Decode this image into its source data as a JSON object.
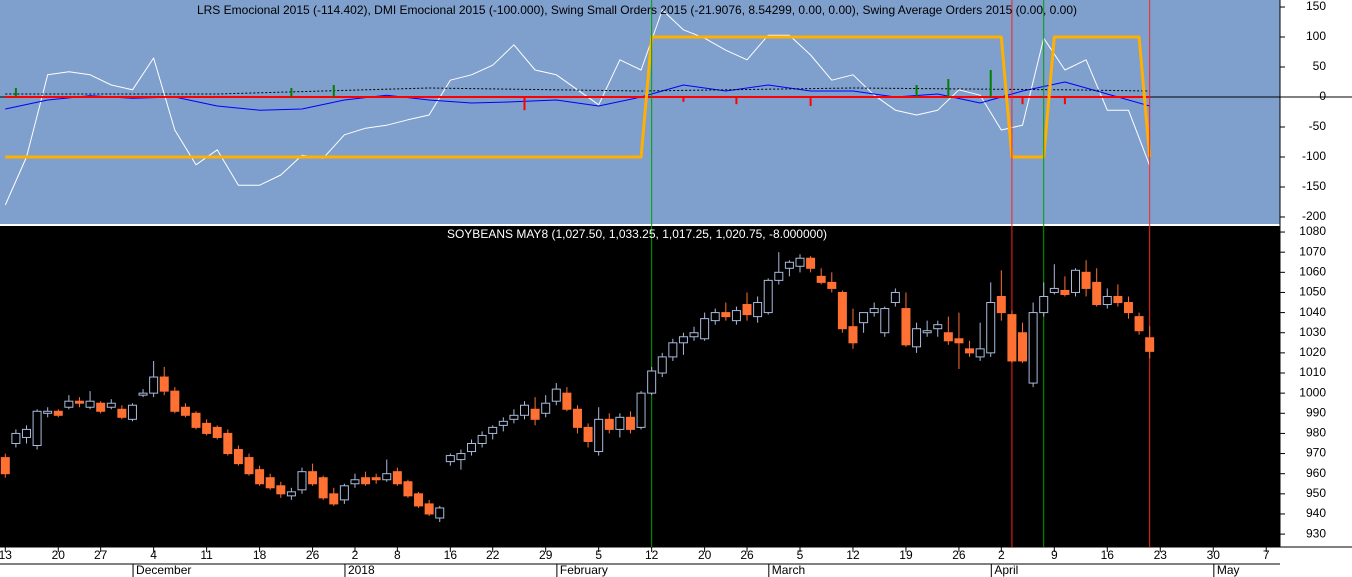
{
  "chart_data": [
    {
      "type": "line",
      "title": "LRS Emocional 2015 (-114.402), DMI Emocional 2015 (-100.000), Swing Small Orders 2015 (-21.9076, 8.54299, 0.00, 0.00), Swing Average Orders 2015 (0.00, 0.00)",
      "background": "#7f9fcc",
      "xlim": [
        -0.5,
        120.3
      ],
      "ylim": [
        -211.7,
        161.7
      ],
      "yticks": [
        150,
        100,
        50,
        0,
        -50,
        -100,
        -150,
        -200
      ],
      "reference_line": 0,
      "series": [
        {
          "color": "#ffffff",
          "style": "solid",
          "width": 1,
          "x": [
            0,
            2,
            4,
            6,
            8,
            10,
            12,
            14,
            16,
            18,
            20,
            22,
            24,
            26,
            28,
            30,
            32,
            34,
            36,
            38,
            40,
            42,
            44,
            46,
            48,
            50,
            52,
            54,
            56,
            58,
            60,
            62,
            64,
            66,
            68,
            70,
            72,
            74,
            76,
            78,
            80,
            82,
            84,
            86,
            88,
            90,
            92,
            94,
            96,
            98,
            100,
            102,
            104,
            106,
            108
          ],
          "values": [
            -180,
            -100,
            37,
            42,
            37,
            20,
            12,
            65,
            -55,
            -113,
            -88,
            -147,
            -147,
            -130,
            -97,
            -102,
            -63,
            -52,
            -47,
            -38,
            -30,
            28,
            37,
            53,
            87,
            45,
            37,
            12,
            -13,
            62,
            45,
            145,
            112,
            98,
            78,
            62,
            103,
            103,
            70,
            28,
            37,
            3,
            -22,
            -30,
            -22,
            12,
            3,
            -55,
            -47,
            98,
            45,
            62,
            -22,
            -22,
            -114.402
          ]
        },
        {
          "color": "#0000ff",
          "style": "solid",
          "width": 1,
          "x": [
            0,
            4,
            8,
            12,
            16,
            20,
            24,
            28,
            32,
            36,
            40,
            44,
            48,
            52,
            56,
            60,
            64,
            68,
            72,
            76,
            80,
            84,
            88,
            92,
            96,
            100,
            104,
            108
          ],
          "values": [
            -20,
            -5,
            2,
            -2,
            0,
            -15,
            -22,
            -20,
            -5,
            3,
            -5,
            -10,
            -8,
            -5,
            -15,
            0,
            20,
            10,
            20,
            10,
            10,
            0,
            5,
            -10,
            10,
            25,
            5,
            -15
          ]
        },
        {
          "color": "#000000",
          "style": "dotted",
          "width": 1,
          "x": [
            0,
            20,
            40,
            60,
            80,
            100,
            108
          ],
          "values": [
            5,
            5,
            15,
            10,
            15,
            12,
            10
          ]
        },
        {
          "color": "#ff0000",
          "style": "solid",
          "width": 2,
          "x": [
            0,
            108
          ],
          "values": [
            0,
            0
          ]
        },
        {
          "color": "#ffb000",
          "style": "solid",
          "width": 3,
          "x": [
            0,
            60,
            61,
            94,
            95,
            98,
            99,
            107,
            108
          ],
          "values": [
            -100,
            -100,
            100,
            100,
            -100,
            -100,
            100,
            100,
            -100
          ]
        },
        {
          "color": "#008000",
          "style": "spike",
          "width": 2,
          "x": [
            1,
            27,
            31,
            86,
            89,
            93
          ],
          "values": [
            15,
            15,
            20,
            20,
            30,
            45
          ]
        },
        {
          "color": "#ff0000",
          "style": "spike",
          "width": 2,
          "x": [
            49,
            64,
            69,
            76,
            96,
            100
          ],
          "values": [
            -22,
            -8,
            -12,
            -15,
            -12,
            -12
          ]
        }
      ]
    },
    {
      "type": "candlestick",
      "title": "SOYBEANS MAY8 (1,027.50, 1,033.25, 1,017.25, 1,020.75, -8.000000)",
      "background": "#000000",
      "up_color": "#a9bbdd",
      "down_color": "#ff7033",
      "xlim": [
        -0.5,
        120.3
      ],
      "ylim": [
        923.6,
        1083
      ],
      "yticks": [
        1080,
        1070,
        1060,
        1050,
        1040,
        1030,
        1020,
        1010,
        1000,
        990,
        980,
        970,
        960,
        950,
        940,
        930
      ],
      "categories": [
        "13",
        null,
        null,
        null,
        null,
        "20",
        null,
        null,
        null,
        "27",
        null,
        null,
        null,
        null,
        "4",
        null,
        null,
        null,
        null,
        "11",
        null,
        null,
        null,
        null,
        "18",
        null,
        null,
        null,
        null,
        "26",
        null,
        null,
        null,
        "2",
        null,
        null,
        null,
        "8",
        null,
        null,
        null,
        null,
        "16",
        null,
        null,
        null,
        "22",
        null,
        null,
        null,
        null,
        "29",
        null,
        null,
        null,
        null,
        "5",
        null,
        null,
        null,
        null,
        "12",
        null,
        null,
        null,
        null,
        "20",
        null,
        null,
        null,
        "26",
        null,
        null,
        null,
        null,
        "5",
        null,
        null,
        null,
        null,
        "12",
        null,
        null,
        null,
        null,
        "19",
        null,
        null,
        null,
        null,
        "26",
        null,
        null,
        null,
        "2",
        null,
        null,
        null,
        null,
        "9",
        null,
        null,
        null,
        null,
        "16",
        null,
        null,
        null,
        null,
        "23",
        null,
        null,
        null,
        null,
        "30",
        null,
        null,
        null,
        null,
        "7"
      ],
      "months": [
        {
          "label": "December",
          "index": 13
        },
        {
          "label": "2018",
          "index": 33
        },
        {
          "label": "February",
          "index": 53
        },
        {
          "label": "March",
          "index": 73
        },
        {
          "label": "April",
          "index": 94
        },
        {
          "label": "May",
          "index": 115
        }
      ],
      "signals": [
        {
          "index": 61,
          "color": "#00a000"
        },
        {
          "index": 95,
          "color": "#ff2020"
        },
        {
          "index": 98,
          "color": "#00a000"
        },
        {
          "index": 108,
          "color": "#ff2020"
        }
      ],
      "open": [
        968,
        975,
        978,
        974,
        990,
        991,
        993,
        996,
        993,
        995,
        993,
        992,
        987,
        999,
        1000,
        1008,
        1001,
        993,
        990,
        985,
        983,
        980,
        972,
        968,
        962,
        958,
        954,
        949,
        952,
        961,
        958,
        950,
        947,
        955,
        958,
        958,
        957,
        961,
        956,
        950,
        945,
        938,
        966,
        967,
        971,
        975,
        980,
        984,
        987,
        989,
        992,
        990,
        996,
        1000,
        992,
        983,
        971,
        987,
        982,
        988,
        983,
        1000,
        1010,
        1018,
        1025,
        1028,
        1027,
        1036,
        1040,
        1036,
        1044,
        1038,
        1040,
        1056,
        1062,
        1063,
        1067,
        1058,
        1055,
        1050,
        1033,
        1035,
        1040,
        1030,
        1045,
        1042,
        1023,
        1030,
        1032,
        1030,
        1027,
        1022,
        1018,
        1020,
        1048,
        1039,
        1030,
        1005,
        1040,
        1050,
        1051,
        1050,
        1060,
        1055,
        1044,
        1048,
        1045,
        1038,
        1027.5,
        null,
        null,
        null,
        null,
        null,
        null,
        null,
        null,
        null,
        null,
        null
      ],
      "high": [
        970,
        982,
        984,
        992,
        993,
        992,
        999,
        998,
        1001,
        996,
        997,
        994,
        995,
        1002,
        1016,
        1013,
        1003,
        995,
        991,
        987,
        984,
        982,
        974,
        970,
        964,
        960,
        956,
        953,
        963,
        965,
        959,
        953,
        955,
        960,
        961,
        960,
        967,
        963,
        957,
        951,
        947,
        944,
        970,
        972,
        977,
        981,
        984,
        988,
        992,
        996,
        998,
        999,
        1005,
        1003,
        994,
        985,
        993,
        990,
        990,
        991,
        1001,
        1013,
        1020,
        1027,
        1030,
        1033,
        1040,
        1042,
        1045,
        1043,
        1050,
        1048,
        1057,
        1070,
        1066,
        1069,
        1068,
        1062,
        1060,
        1051,
        1042,
        1040,
        1045,
        1043,
        1052,
        1050,
        1035,
        1036,
        1036,
        1038,
        1040,
        1026,
        1035,
        1055,
        1061,
        1041,
        1035,
        1045,
        1055,
        1064,
        1058,
        1062,
        1066,
        1062,
        1052,
        1054,
        1048,
        1040,
        1033.25,
        null,
        null,
        null,
        null,
        null,
        null,
        null,
        null,
        null,
        null,
        null
      ],
      "low": [
        958,
        973,
        975,
        972,
        988,
        988,
        992,
        993,
        992,
        990,
        992,
        987,
        986,
        998,
        998,
        999,
        990,
        988,
        982,
        979,
        977,
        969,
        964,
        959,
        954,
        952,
        948,
        947,
        950,
        954,
        947,
        944,
        945,
        953,
        954,
        955,
        956,
        954,
        948,
        943,
        939,
        936,
        964,
        962,
        969,
        973,
        977,
        981,
        985,
        987,
        984,
        988,
        994,
        991,
        980,
        973,
        969,
        980,
        978,
        980,
        982,
        999,
        1008,
        1016,
        1019,
        1026,
        1026,
        1034,
        1036,
        1034,
        1036,
        1035,
        1039,
        1054,
        1058,
        1060,
        1060,
        1054,
        1050,
        1030,
        1022,
        1030,
        1038,
        1028,
        1043,
        1023,
        1020,
        1028,
        1028,
        1024,
        1012,
        1018,
        1016,
        1018,
        1036,
        1015,
        1015,
        1003,
        1038,
        1049,
        1048,
        1048,
        1048,
        1043,
        1042,
        1043,
        1037,
        1029,
        1017.25,
        null,
        null,
        null,
        null,
        null,
        null,
        null,
        null,
        null,
        null,
        null
      ],
      "close": [
        960,
        980,
        982,
        991,
        991,
        989,
        996,
        995,
        996,
        991,
        995,
        988,
        994,
        1000,
        1008,
        1001,
        991,
        989,
        983,
        980,
        978,
        970,
        965,
        960,
        955,
        953,
        950,
        951,
        961,
        955,
        948,
        945,
        954,
        957,
        955,
        957,
        960,
        955,
        949,
        944,
        940,
        943,
        969,
        970,
        975,
        979,
        983,
        986,
        989,
        994,
        987,
        995,
        1002,
        992,
        983,
        976,
        987,
        982,
        988,
        982,
        1000,
        1011,
        1018,
        1025,
        1028,
        1030,
        1037,
        1040,
        1038,
        1041,
        1039,
        1045,
        1056,
        1060,
        1065,
        1067,
        1062,
        1055,
        1052,
        1032,
        1025,
        1040,
        1042,
        1042,
        1050,
        1024,
        1032,
        1031,
        1034,
        1026,
        1025,
        1020,
        1022,
        1045,
        1040,
        1016,
        1016,
        1040,
        1048,
        1052,
        1049,
        1061,
        1052,
        1044,
        1048,
        1045,
        1040,
        1031,
        1020.75,
        null,
        null,
        null,
        null,
        null,
        null,
        null,
        null,
        null,
        null,
        null
      ]
    }
  ]
}
